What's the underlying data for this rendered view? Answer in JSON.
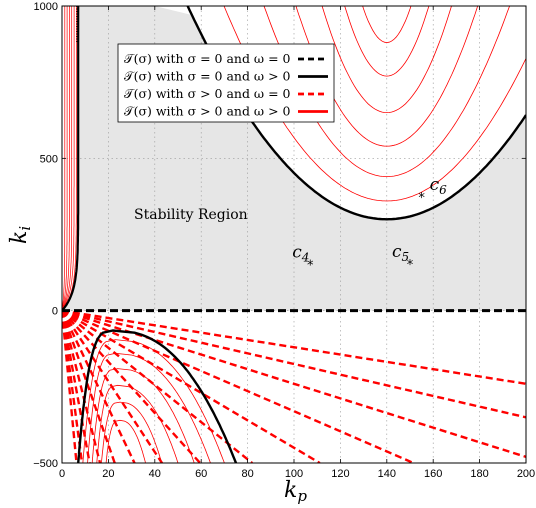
{
  "chart_data": {
    "type": "line",
    "title": "",
    "xlabel": "k_p",
    "ylabel": "k_i",
    "xlim": [
      0,
      200
    ],
    "ylim": [
      -500,
      1000
    ],
    "x_ticks": [
      "0",
      "20",
      "40",
      "60",
      "80",
      "100",
      "120",
      "140",
      "160",
      "180",
      "200"
    ],
    "y_ticks": [
      "−500",
      "0",
      "500",
      "1000"
    ],
    "grid": true,
    "legend_placement": "top-center",
    "legend": [
      {
        "label": "𝒯(σ) with σ = 0 and ω = 0",
        "color": "#000000",
        "style": "dashed"
      },
      {
        "label": "𝒯(σ) with σ = 0 and ω > 0",
        "color": "#000000",
        "style": "solid"
      },
      {
        "label": "𝒯(σ) with σ > 0 and ω = 0",
        "color": "#ff0000",
        "style": "dashed"
      },
      {
        "label": "𝒯(σ) with σ > 0 and ω > 0",
        "color": "#ff0000",
        "style": "solid"
      }
    ],
    "region_label": "Stability Region",
    "points": [
      {
        "name": "c4",
        "label_main": "c",
        "label_sub": "4",
        "x": 107,
        "y": 148
      },
      {
        "name": "c5",
        "label_main": "c",
        "label_sub": "5",
        "x": 150,
        "y": 150
      },
      {
        "name": "c6",
        "label_main": "c",
        "label_sub": "6",
        "x": 155,
        "y": 370
      }
    ],
    "colors": {
      "region_fill": "#e6e6e6",
      "red": "#ff0000",
      "black": "#000000"
    },
    "dashed_ray_slopes": [
      -1.2,
      -1.75,
      -2.4,
      -3.3,
      -4.5,
      -6.1,
      -8.4,
      -11.6,
      -16.0,
      -22.0,
      -30.5,
      -42.0,
      -58.0,
      -80.0
    ],
    "upper_right_family": {
      "vertex_x": 140,
      "bold_vertex_y": 300,
      "bold_curvature": 0.095,
      "levels": [
        {
          "vertex_y": 360,
          "curvature": 0.13
        },
        {
          "vertex_y": 440,
          "curvature": 0.2
        },
        {
          "vertex_y": 540,
          "curvature": 0.3
        },
        {
          "vertex_y": 650,
          "curvature": 0.45
        },
        {
          "vertex_y": 770,
          "curvature": 0.7
        },
        {
          "vertex_y": 880,
          "curvature": 1.1
        }
      ]
    },
    "lower_left_family": {
      "bold": {
        "left": 7,
        "right": 75,
        "peak_x": 22,
        "peak_y": -65
      },
      "levels": [
        {
          "left": 9,
          "right": 70,
          "peak_x": 23,
          "peak_y": -95
        },
        {
          "left": 11,
          "right": 64,
          "peak_x": 23,
          "peak_y": -140
        },
        {
          "left": 13,
          "right": 57,
          "peak_x": 24,
          "peak_y": -190
        },
        {
          "left": 15,
          "right": 50,
          "peak_x": 24,
          "peak_y": -245
        },
        {
          "left": 17,
          "right": 43,
          "peak_x": 25,
          "peak_y": -300
        },
        {
          "left": 19,
          "right": 36,
          "peak_x": 25,
          "peak_y": -360
        }
      ]
    },
    "left_branch_family": {
      "bold_asymptote": 7,
      "levels": [
        1.2,
        2.2,
        3.2,
        4.2,
        5.2,
        6.2
      ]
    }
  }
}
